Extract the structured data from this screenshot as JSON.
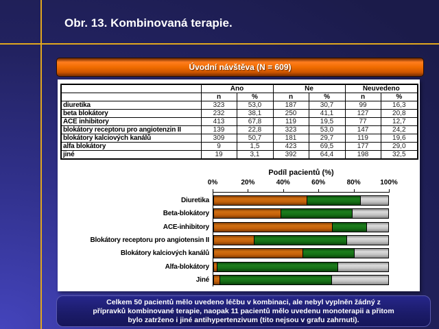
{
  "slide": {
    "title": "Obr. 13. Kombinovaná terapie.",
    "banner": "Úvodní návštěva (N = 609)",
    "footer_lines": [
      "Celkem 50 pacientů mělo uvedeno léčbu v kombinaci, ale nebyl vyplněn žádný z",
      "přípravků kombinované terapie, naopak 11 pacientů mělo uvedenu monoterapii a přitom",
      "bylo zatrženo i jiné antihypertenzivum (tito nejsou v grafu zahrnuti)."
    ]
  },
  "table": {
    "group_headers": [
      "Ano",
      "Ne",
      "Neuvedeno"
    ],
    "sub_headers": [
      "n",
      "%",
      "n",
      "%",
      "n",
      "%"
    ],
    "rows": [
      {
        "label": "diuretika",
        "values": [
          "323",
          "53,0",
          "187",
          "30,7",
          "99",
          "16,3"
        ]
      },
      {
        "label": "beta blokátory",
        "values": [
          "232",
          "38,1",
          "250",
          "41,1",
          "127",
          "20,8"
        ]
      },
      {
        "label": "ACE inhibitory",
        "values": [
          "413",
          "67,8",
          "119",
          "19,5",
          "77",
          "12,7"
        ]
      },
      {
        "label": "blokátory receptoru pro angiotenzin II",
        "values": [
          "139",
          "22,8",
          "323",
          "53,0",
          "147",
          "24,2"
        ]
      },
      {
        "label": "blokátory kalciových kanálů",
        "values": [
          "309",
          "50,7",
          "181",
          "29,7",
          "119",
          "19,6"
        ]
      },
      {
        "label": "alfa blokátory",
        "values": [
          "9",
          "1,5",
          "423",
          "69,5",
          "177",
          "29,0"
        ]
      },
      {
        "label": "jiné",
        "values": [
          "19",
          "3,1",
          "392",
          "64,4",
          "198",
          "32,5"
        ]
      }
    ]
  },
  "chart_data": {
    "type": "bar",
    "orientation": "horizontal",
    "stacked": true,
    "title": "Podíl pacientů (%)",
    "categories": [
      "Diuretika",
      "Beta-blokátory",
      "ACE-inhibitory",
      "Blokátory receptoru pro angiotensin II",
      "Blokátory kalciových kanálů",
      "Alfa-blokátory",
      "Jiné"
    ],
    "series": [
      {
        "name": "Ano",
        "color": "#c4600a",
        "values": [
          53.0,
          38.1,
          67.8,
          22.8,
          50.7,
          1.5,
          3.1
        ]
      },
      {
        "name": "Ne",
        "color": "#156e15",
        "values": [
          30.7,
          41.1,
          19.5,
          53.0,
          29.7,
          69.5,
          64.4
        ]
      },
      {
        "name": "Neuvedeno",
        "color": "#c0c0c0",
        "values": [
          16.3,
          20.8,
          12.7,
          24.2,
          19.6,
          29.0,
          32.5
        ]
      }
    ],
    "x_ticks": [
      "0%",
      "20%",
      "40%",
      "60%",
      "80%",
      "100%"
    ],
    "xlim": [
      0,
      100
    ],
    "grid": false,
    "legend_position": "none"
  },
  "colors": {
    "background_top": "#1b1b4a",
    "background_bottom_left": "#4444bc",
    "gold_line": "#e2a81e",
    "banner_orange": "#f06c00",
    "panel_white": "#ffffff",
    "footer_navy": "#1b1b68",
    "text_white": "#ffffff",
    "text_black": "#000000"
  }
}
